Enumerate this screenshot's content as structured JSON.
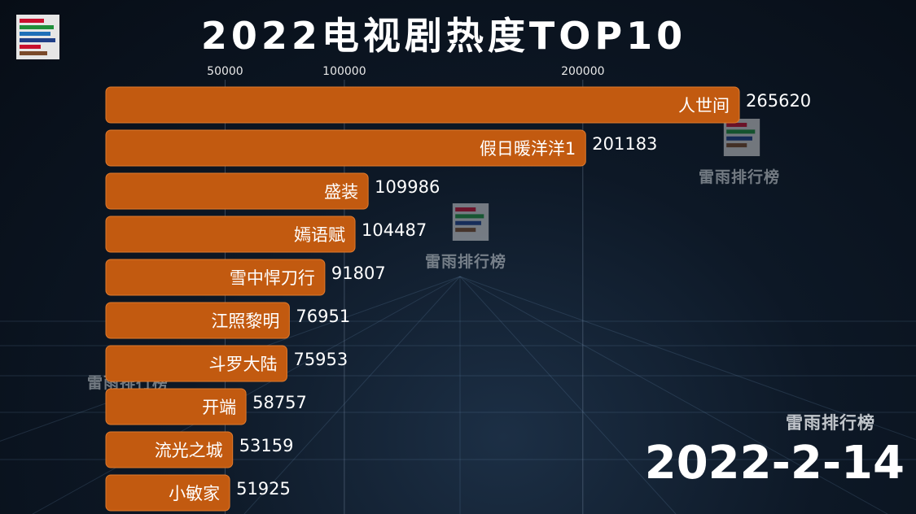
{
  "title": "2022电视剧热度TOP10",
  "date": "2022-2-14",
  "watermark": "雷雨排行榜",
  "colors": {
    "bar": "#c25a10",
    "bar_stroke": "#e07a2c",
    "background": "#0b1522"
  },
  "icons": [
    "ranking-logo-icon"
  ],
  "chart_data": {
    "type": "bar",
    "orientation": "horizontal",
    "title": "2022电视剧热度TOP10",
    "categories": [
      "人世间",
      "假日暖洋洋1",
      "盛装",
      "嫣语赋",
      "雪中悍刀行",
      "江照黎明",
      "斗罗大陆",
      "开端",
      "流光之城",
      "小敏家"
    ],
    "values": [
      265620,
      201183,
      109986,
      104487,
      91807,
      76951,
      75953,
      58757,
      53159,
      51925
    ],
    "value_labels": [
      "265620",
      "201183",
      "109986",
      "104487",
      "91807",
      "76951",
      "75953",
      "58757",
      "53159",
      "51925"
    ],
    "xticks": [
      50000,
      100000,
      200000
    ],
    "xtick_labels": [
      "50000",
      "100000",
      "200000"
    ],
    "xlim": [
      0,
      265620
    ],
    "grid": true,
    "legend": "none"
  }
}
